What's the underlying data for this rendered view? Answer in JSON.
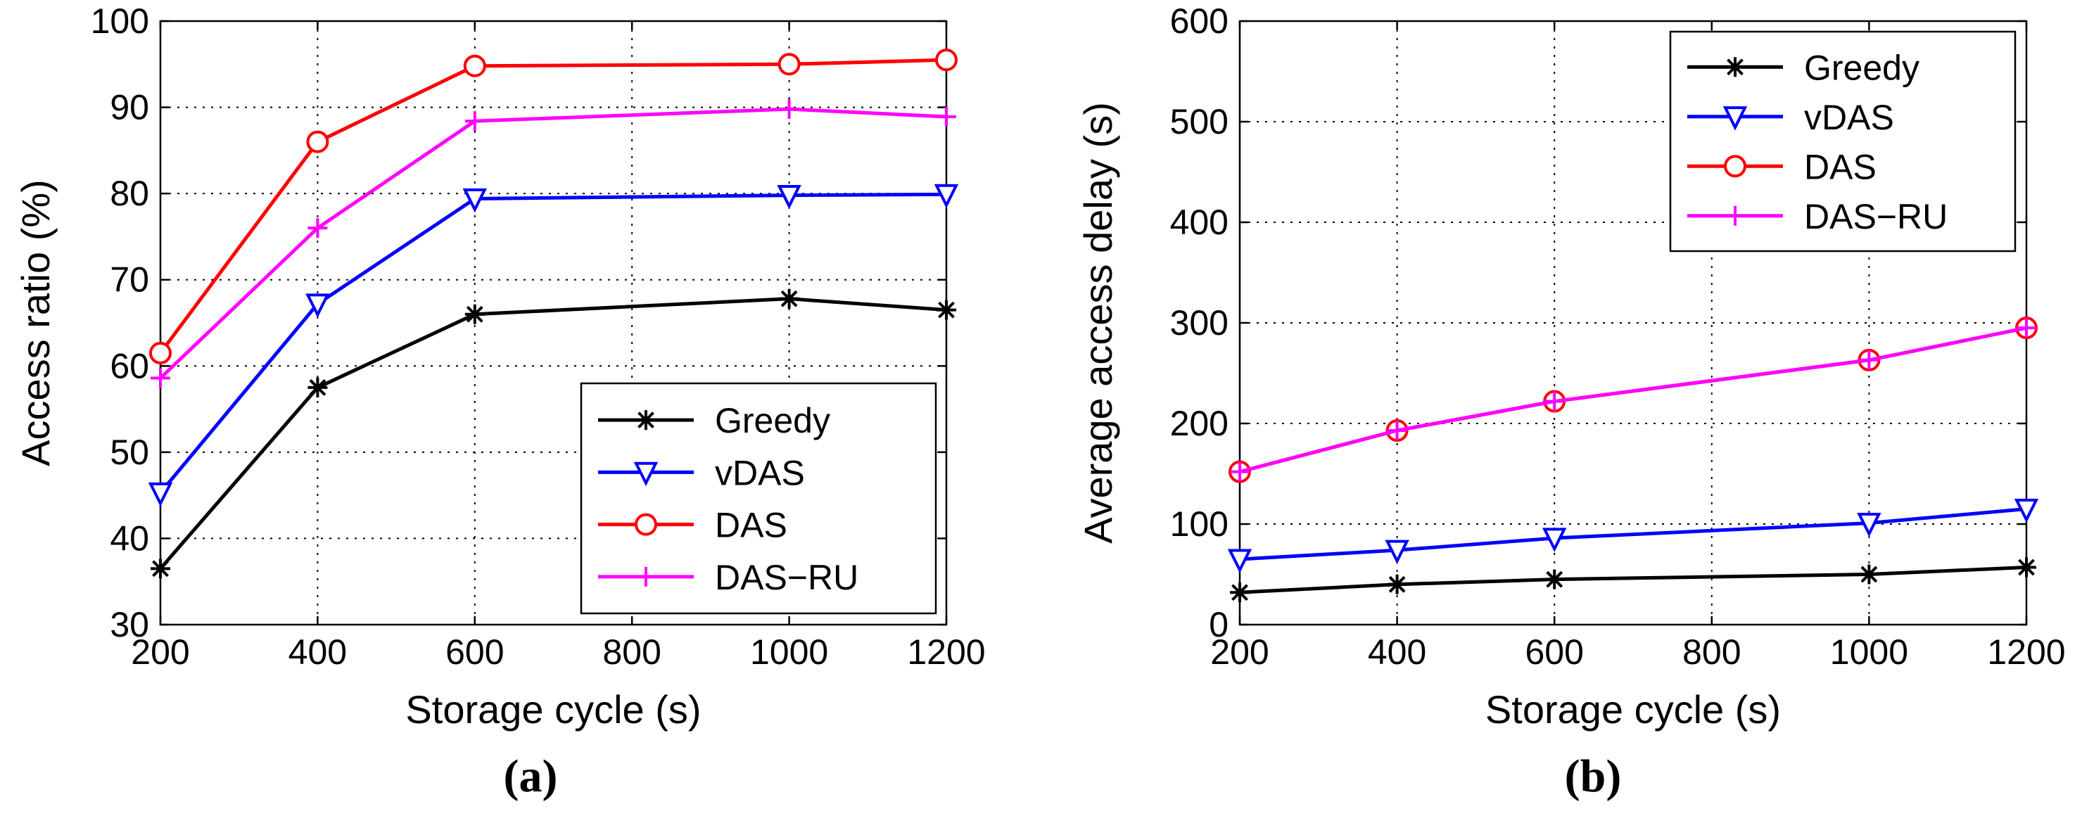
{
  "chart_data": [
    {
      "type": "line",
      "panel_label": "(a)",
      "xlabel": "Storage cycle (s)",
      "ylabel": "Access ratio (%)",
      "xlim": [
        200,
        1200
      ],
      "ylim": [
        30,
        100
      ],
      "xticks": [
        200,
        400,
        600,
        800,
        1000,
        1200
      ],
      "yticks": [
        30,
        40,
        50,
        60,
        70,
        80,
        90,
        100
      ],
      "grid": true,
      "legend_position": "bottom-right",
      "x": [
        200,
        400,
        600,
        1000,
        1200
      ],
      "series": [
        {
          "name": "Greedy",
          "color": "#000000",
          "marker": "asterisk",
          "values": [
            36.5,
            57.5,
            66.0,
            67.8,
            66.5
          ]
        },
        {
          "name": "vDAS",
          "color": "#0000ff",
          "marker": "triangle-down",
          "values": [
            45.3,
            67.2,
            79.4,
            79.8,
            79.9
          ]
        },
        {
          "name": "DAS",
          "color": "#ff0000",
          "marker": "circle",
          "values": [
            61.5,
            86.0,
            94.8,
            95.0,
            95.5
          ]
        },
        {
          "name": "DAS−RU",
          "color": "#ff00ff",
          "marker": "plus",
          "values": [
            58.6,
            76.0,
            88.4,
            89.8,
            88.9
          ]
        }
      ]
    },
    {
      "type": "line",
      "panel_label": "(b)",
      "xlabel": "Storage cycle (s)",
      "ylabel": "Average access delay (s)",
      "xlim": [
        200,
        1200
      ],
      "ylim": [
        0,
        600
      ],
      "xticks": [
        200,
        400,
        600,
        800,
        1000,
        1200
      ],
      "yticks": [
        0,
        100,
        200,
        300,
        400,
        500,
        600
      ],
      "grid": true,
      "legend_position": "top-right",
      "x": [
        200,
        400,
        600,
        1000,
        1200
      ],
      "series": [
        {
          "name": "Greedy",
          "color": "#000000",
          "marker": "asterisk",
          "values": [
            32,
            40,
            45,
            50,
            57
          ]
        },
        {
          "name": "vDAS",
          "color": "#0000ff",
          "marker": "triangle-down",
          "values": [
            65,
            74,
            86,
            101,
            115
          ]
        },
        {
          "name": "DAS",
          "color": "#ff0000",
          "marker": "circle",
          "values": [
            152,
            193,
            222,
            263,
            295
          ]
        },
        {
          "name": "DAS−RU",
          "color": "#ff00ff",
          "marker": "plus",
          "values": [
            152,
            193,
            222,
            263,
            295
          ]
        }
      ]
    }
  ]
}
